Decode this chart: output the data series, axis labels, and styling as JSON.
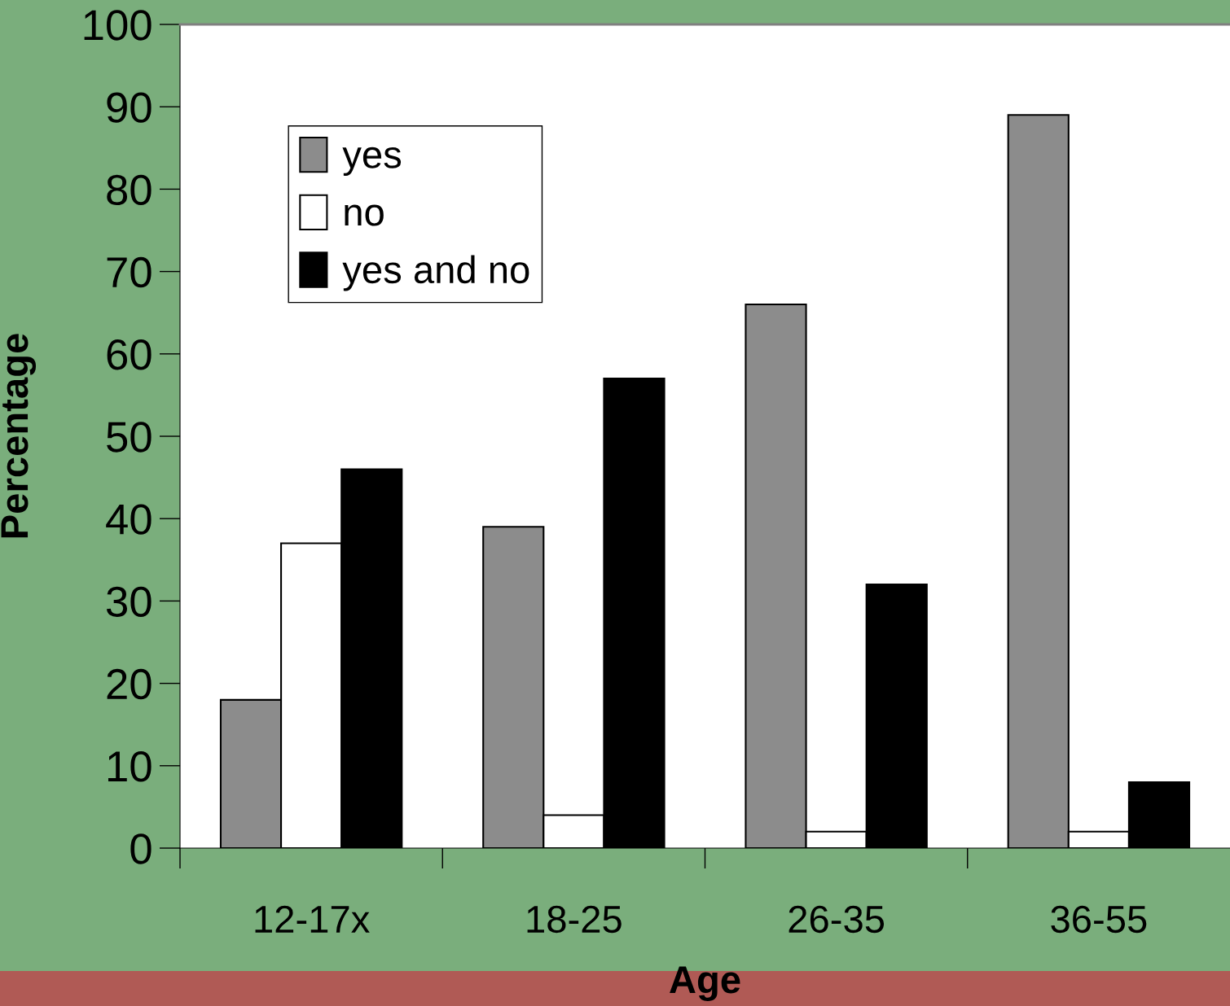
{
  "chart_data": {
    "type": "bar",
    "xlabel": "Age",
    "ylabel": "Percentage",
    "categories": [
      "12-17x",
      "18-25",
      "26-35",
      "36-55"
    ],
    "series": [
      {
        "name": "yes",
        "color": "#8c8c8c",
        "values": [
          18,
          39,
          66,
          89
        ]
      },
      {
        "name": "no",
        "color": "#ffffff",
        "values": [
          37,
          4,
          2,
          2
        ]
      },
      {
        "name": "yes and no",
        "color": "#000000",
        "values": [
          46,
          57,
          32,
          8
        ]
      }
    ],
    "ylim": [
      0,
      100
    ],
    "yticks": [
      0,
      10,
      20,
      30,
      40,
      50,
      60,
      70,
      80,
      90,
      100
    ],
    "grid": false,
    "legend": "top left"
  }
}
